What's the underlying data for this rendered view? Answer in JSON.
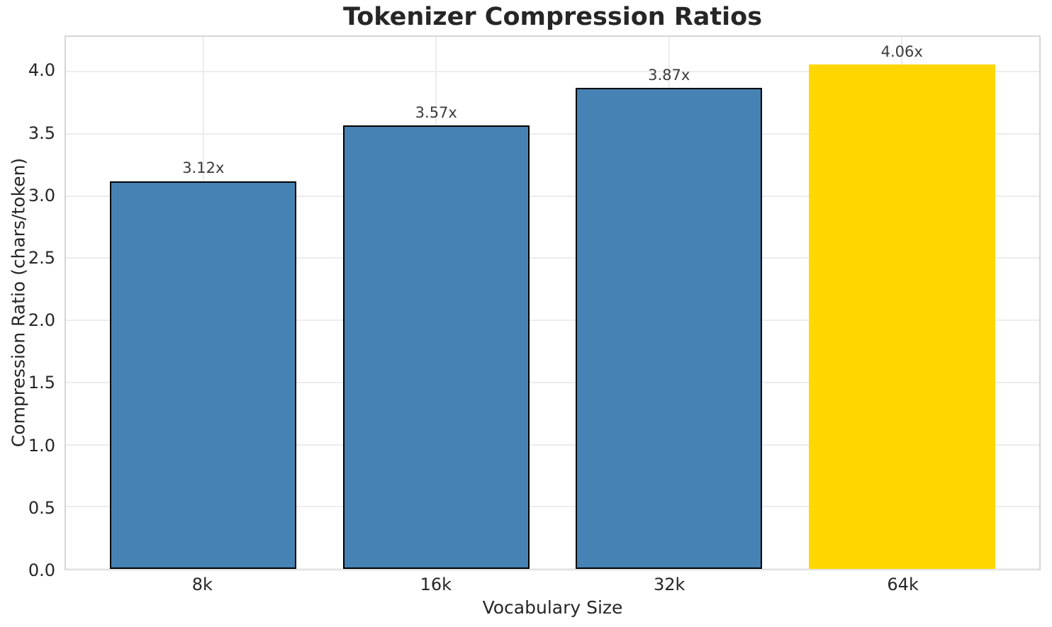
{
  "chart_data": {
    "type": "bar",
    "title": "Tokenizer Compression Ratios",
    "xlabel": "Vocabulary Size",
    "ylabel": "Compression Ratio (chars/token)",
    "categories": [
      "8k",
      "16k",
      "32k",
      "64k"
    ],
    "values": [
      3.12,
      3.57,
      3.87,
      4.06
    ],
    "bar_labels": [
      "3.12x",
      "3.57x",
      "3.87x",
      "4.06x"
    ],
    "bar_colors": [
      "#4682B4",
      "#4682B4",
      "#4682B4",
      "#FFD700"
    ],
    "bar_edge_colors": [
      "#000000",
      "#000000",
      "#000000",
      "none"
    ],
    "yticks": [
      0.0,
      0.5,
      1.0,
      1.5,
      2.0,
      2.5,
      3.0,
      3.5,
      4.0
    ],
    "ytick_labels": [
      "0.0",
      "0.5",
      "1.0",
      "1.5",
      "2.0",
      "2.5",
      "3.0",
      "3.5",
      "4.0"
    ],
    "ylim": [
      0,
      4.28
    ],
    "xlim": [
      -0.59,
      3.59
    ],
    "bar_width": 0.8,
    "grid": true,
    "legend_position": "none",
    "colors": {
      "bar_blue": "#4682B4",
      "bar_highlight": "#FFD700",
      "grid": "#ececec",
      "spine": "#d5d5d5",
      "title_text": "#262626",
      "tick_text": "#262626",
      "bar_label_text": "#3a3a3a",
      "background": "#ffffff"
    }
  }
}
